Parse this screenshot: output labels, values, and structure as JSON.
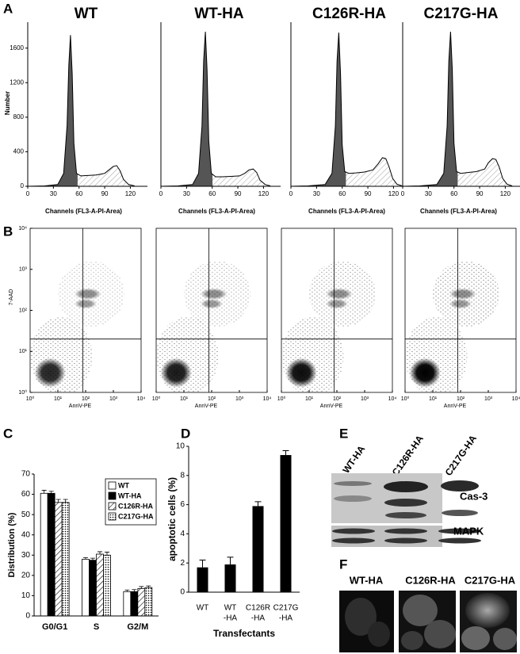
{
  "figure": {
    "panel_labels": [
      "A",
      "B",
      "C",
      "D",
      "E",
      "F"
    ]
  },
  "chart_data": [
    {
      "type": "line",
      "title": "WT",
      "x_label": "Channels (FL3-A-PI-Area)",
      "y_label": "Number",
      "color": "#555555",
      "x": [
        0,
        20,
        35,
        42,
        46,
        48,
        50,
        52,
        54,
        57,
        62,
        70,
        80,
        90,
        95,
        100,
        104,
        108,
        112,
        118,
        125
      ],
      "values": [
        0,
        5,
        20,
        150,
        700,
        1400,
        1750,
        1300,
        500,
        150,
        120,
        125,
        130,
        150,
        190,
        230,
        240,
        180,
        80,
        20,
        5
      ],
      "xlim": [
        0,
        140
      ],
      "xticks": [
        0,
        30,
        60,
        90,
        120
      ],
      "ylim": [
        0,
        1900
      ],
      "yticks": [
        0,
        400,
        800,
        1200,
        1600
      ]
    },
    {
      "type": "line",
      "title": "WT-HA",
      "x_label": "Channels (FL3-A-PI-Area)",
      "color": "#555555",
      "x": [
        0,
        20,
        37,
        44,
        48,
        50,
        52,
        54,
        56,
        59,
        64,
        72,
        82,
        92,
        98,
        103,
        108,
        112,
        116,
        122,
        128
      ],
      "values": [
        0,
        5,
        20,
        150,
        700,
        1450,
        1790,
        1350,
        520,
        150,
        110,
        110,
        115,
        120,
        150,
        190,
        200,
        160,
        70,
        20,
        5
      ],
      "xlim": [
        0,
        140
      ],
      "xticks": [
        0,
        30,
        60,
        90,
        120
      ],
      "ylim": [
        0,
        1900
      ]
    },
    {
      "type": "line",
      "title": "C126R-HA",
      "x_label": "Channels (FL3-A-PI-Area)",
      "color": "#555555",
      "x": [
        0,
        20,
        40,
        48,
        52,
        54,
        56,
        58,
        60,
        63,
        68,
        76,
        86,
        96,
        102,
        107,
        111,
        115,
        119,
        124,
        130
      ],
      "values": [
        0,
        5,
        20,
        150,
        700,
        1450,
        1780,
        1300,
        480,
        170,
        150,
        155,
        165,
        190,
        260,
        330,
        320,
        220,
        90,
        25,
        5
      ],
      "xlim": [
        0,
        140
      ],
      "xticks": [
        0,
        30,
        60,
        90,
        120
      ],
      "ylim": [
        0,
        1900
      ]
    },
    {
      "type": "line",
      "title": "C217G-HA",
      "x_label": "Channels (FL3-A-PI-Area)",
      "color": "#555555",
      "x": [
        0,
        20,
        40,
        48,
        52,
        54,
        56,
        58,
        60,
        63,
        68,
        76,
        86,
        96,
        100,
        105,
        109,
        113,
        117,
        122,
        128
      ],
      "values": [
        0,
        5,
        20,
        150,
        700,
        1450,
        1790,
        1350,
        500,
        170,
        150,
        160,
        170,
        200,
        270,
        320,
        310,
        220,
        90,
        25,
        5
      ],
      "xlim": [
        0,
        140
      ],
      "xticks": [
        0,
        30,
        60,
        90,
        120
      ],
      "ylim": [
        0,
        1900
      ]
    },
    {
      "type": "scatter",
      "x_label": "AnnV-PE",
      "y_label": "7-AAD",
      "log_x": true,
      "log_y": true,
      "xlim": [
        1,
        10000
      ],
      "ylim": [
        1,
        10000
      ],
      "quadrant_x": 80,
      "quadrant_y": 20,
      "xticks": [
        {
          "value": 1,
          "label": "10⁰"
        },
        {
          "value": 10,
          "label": "10¹"
        },
        {
          "value": 100,
          "label": "10²"
        },
        {
          "value": 1000,
          "label": "10³"
        },
        {
          "value": 10000,
          "label": "10⁴"
        }
      ],
      "yticks": [
        {
          "value": 1,
          "label": "10⁰"
        },
        {
          "value": 10,
          "label": "10¹"
        },
        {
          "value": 100,
          "label": "10²"
        },
        {
          "value": 1000,
          "label": "10³"
        },
        {
          "value": 10000,
          "label": "10⁴"
        }
      ]
    },
    {
      "type": "scatter",
      "x_label": "AnnV-PE",
      "log_x": true,
      "log_y": true,
      "xlim": [
        1,
        10000
      ],
      "ylim": [
        1,
        10000
      ],
      "quadrant_x": 80,
      "quadrant_y": 20,
      "xticks": [
        {
          "value": 1,
          "label": "10⁰"
        },
        {
          "value": 10,
          "label": "10¹"
        },
        {
          "value": 100,
          "label": "10²"
        },
        {
          "value": 1000,
          "label": "10³"
        },
        {
          "value": 10000,
          "label": "10⁴"
        }
      ]
    },
    {
      "type": "scatter",
      "x_label": "AnnV-PE",
      "log_x": true,
      "log_y": true,
      "xlim": [
        1,
        10000
      ],
      "ylim": [
        1,
        10000
      ],
      "quadrant_x": 80,
      "quadrant_y": 20,
      "xticks": [
        {
          "value": 1,
          "label": "10⁰"
        },
        {
          "value": 10,
          "label": "10¹"
        },
        {
          "value": 100,
          "label": "10²"
        },
        {
          "value": 1000,
          "label": "10³"
        },
        {
          "value": 10000,
          "label": "10⁴"
        }
      ]
    },
    {
      "type": "scatter",
      "x_label": "AnnV-PE",
      "log_x": true,
      "log_y": true,
      "xlim": [
        1,
        10000
      ],
      "ylim": [
        1,
        10000
      ],
      "quadrant_x": 80,
      "quadrant_y": 20,
      "xticks": [
        {
          "value": 1,
          "label": "10⁰"
        },
        {
          "value": 10,
          "label": "10¹"
        },
        {
          "value": 100,
          "label": "10²"
        },
        {
          "value": 1000,
          "label": "10³"
        },
        {
          "value": 10000,
          "label": "10⁴"
        }
      ]
    },
    {
      "type": "grouped_bar",
      "y_label": "Distribution (%)",
      "categories": [
        "G0/G1",
        "S",
        "G2/M"
      ],
      "series": [
        {
          "name": "WT",
          "color": "#ffffff",
          "pattern": "none",
          "values": [
            60.5,
            28,
            12
          ],
          "errors": [
            1.5,
            0.8,
            0.8
          ]
        },
        {
          "name": "WT-HA",
          "color": "#000000",
          "pattern": "none",
          "values": [
            60.5,
            27.5,
            12
          ],
          "errors": [
            1.0,
            1.0,
            1.0
          ]
        },
        {
          "name": "C126R-HA",
          "color": "#ffffff",
          "pattern": "hatch",
          "values": [
            56,
            30.5,
            13.5
          ],
          "errors": [
            1.5,
            1.2,
            1.0
          ]
        },
        {
          "name": "C217G-HA",
          "color": "#ffffff",
          "pattern": "dots",
          "values": [
            56,
            30,
            14
          ],
          "errors": [
            1.5,
            1.5,
            0.8
          ]
        }
      ],
      "ylim": [
        0,
        70
      ],
      "yticks": [
        0,
        10,
        20,
        30,
        40,
        50,
        60,
        70
      ],
      "legend": "upper right"
    },
    {
      "type": "bar",
      "y_label": "apoptotic cells (%)",
      "x_label": "Transfectants",
      "categories": [
        [
          "WT"
        ],
        [
          "WT",
          "-HA"
        ],
        [
          "C126R",
          "-HA"
        ],
        [
          "C217G",
          "-HA"
        ]
      ],
      "values": [
        1.7,
        1.9,
        5.9,
        9.4
      ],
      "errors": [
        0.5,
        0.5,
        0.3,
        0.3
      ],
      "color": "#000000",
      "ylim": [
        0,
        10
      ],
      "yticks": [
        0,
        2,
        4,
        6,
        8,
        10
      ]
    }
  ],
  "blot": {
    "lanes": [
      "WT-HA",
      "C126R-HA",
      "C217G-HA"
    ],
    "bands": [
      "Cas-3",
      "MAPK"
    ]
  },
  "micrographs": {
    "labels": [
      "WT-HA",
      "C126R-HA",
      "C217G-HA"
    ]
  }
}
